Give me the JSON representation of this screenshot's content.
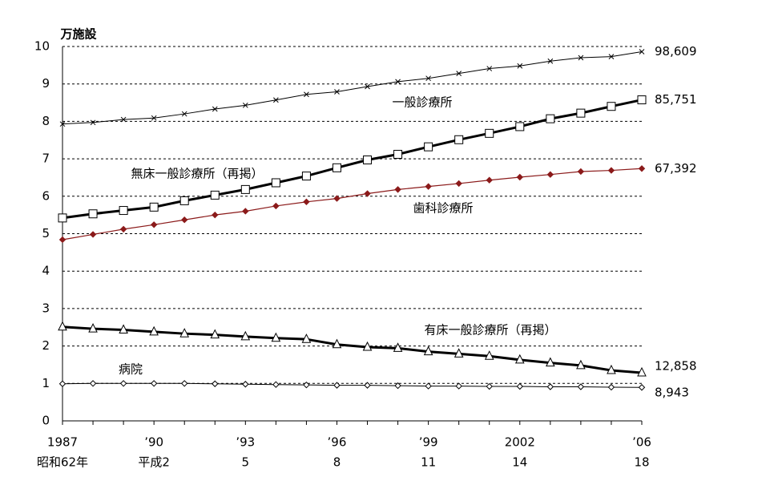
{
  "chart_data": {
    "type": "line",
    "y_label": "万施設",
    "categories": [
      "1987",
      null,
      null,
      "’90",
      null,
      null,
      "’93",
      null,
      null,
      "’96",
      null,
      null,
      "’99",
      null,
      null,
      "2002",
      null,
      null,
      null,
      "’06"
    ],
    "sub_categories": [
      "昭和62年",
      null,
      null,
      "平成2",
      null,
      null,
      "5",
      null,
      null,
      "8",
      null,
      null,
      "11",
      null,
      null,
      "14",
      null,
      null,
      null,
      "18"
    ],
    "ylim": [
      0,
      10
    ],
    "yticks": [
      0,
      1,
      2,
      3,
      4,
      5,
      6,
      7,
      8,
      9,
      10
    ],
    "grid": true,
    "series": [
      {
        "name": "一般診療所",
        "color": "#000000",
        "marker": "x",
        "values": [
          7.93,
          7.97,
          8.05,
          8.09,
          8.2,
          8.33,
          8.43,
          8.57,
          8.72,
          8.79,
          8.93,
          9.06,
          9.15,
          9.28,
          9.41,
          9.48,
          9.61,
          9.7,
          9.73,
          9.8609
        ],
        "value_labels": [
          null,
          null,
          null,
          null,
          null,
          null,
          null,
          null,
          null,
          null,
          null,
          null,
          null,
          null,
          null,
          null,
          null,
          null,
          null,
          "98,609"
        ]
      },
      {
        "name": "無床一般診療所（再掲）",
        "color": "#000000",
        "marker": "square",
        "values": [
          5.42,
          5.53,
          5.62,
          5.71,
          5.88,
          6.03,
          6.18,
          6.36,
          6.54,
          6.76,
          6.97,
          7.12,
          7.32,
          7.51,
          7.68,
          7.86,
          8.07,
          8.22,
          8.4,
          8.5751
        ],
        "value_labels": [
          null,
          null,
          null,
          null,
          null,
          null,
          null,
          null,
          null,
          null,
          null,
          null,
          null,
          null,
          null,
          null,
          null,
          null,
          null,
          "85,751"
        ]
      },
      {
        "name": "歯科診療所",
        "color": "#8b1a1a",
        "marker": "diamond",
        "values": [
          4.84,
          4.98,
          5.12,
          5.24,
          5.37,
          5.5,
          5.6,
          5.74,
          5.85,
          5.94,
          6.07,
          6.18,
          6.26,
          6.34,
          6.43,
          6.51,
          6.58,
          6.66,
          6.69,
          6.7392
        ],
        "value_labels": [
          null,
          null,
          null,
          null,
          null,
          null,
          null,
          null,
          null,
          null,
          null,
          null,
          null,
          null,
          null,
          null,
          null,
          null,
          null,
          "67,392"
        ]
      },
      {
        "name": "有床一般診療所（再掲）",
        "color": "#000000",
        "marker": "triangle",
        "values": [
          2.51,
          2.46,
          2.43,
          2.38,
          2.33,
          2.3,
          2.25,
          2.21,
          2.18,
          2.04,
          1.97,
          1.94,
          1.85,
          1.79,
          1.73,
          1.63,
          1.55,
          1.48,
          1.35,
          1.2858
        ],
        "value_labels": [
          null,
          null,
          null,
          null,
          null,
          null,
          null,
          null,
          null,
          null,
          null,
          null,
          null,
          null,
          null,
          null,
          null,
          null,
          null,
          "12,858"
        ]
      },
      {
        "name": "病院",
        "color": "#000000",
        "marker": "diamond-open",
        "values": [
          0.99,
          1.0,
          1.0,
          1.0,
          1.0,
          0.99,
          0.98,
          0.97,
          0.96,
          0.95,
          0.95,
          0.94,
          0.93,
          0.93,
          0.92,
          0.92,
          0.91,
          0.91,
          0.9,
          0.8943
        ],
        "value_labels": [
          null,
          null,
          null,
          null,
          null,
          null,
          null,
          null,
          null,
          null,
          null,
          null,
          null,
          null,
          null,
          null,
          null,
          null,
          null,
          "8,943"
        ]
      }
    ]
  }
}
